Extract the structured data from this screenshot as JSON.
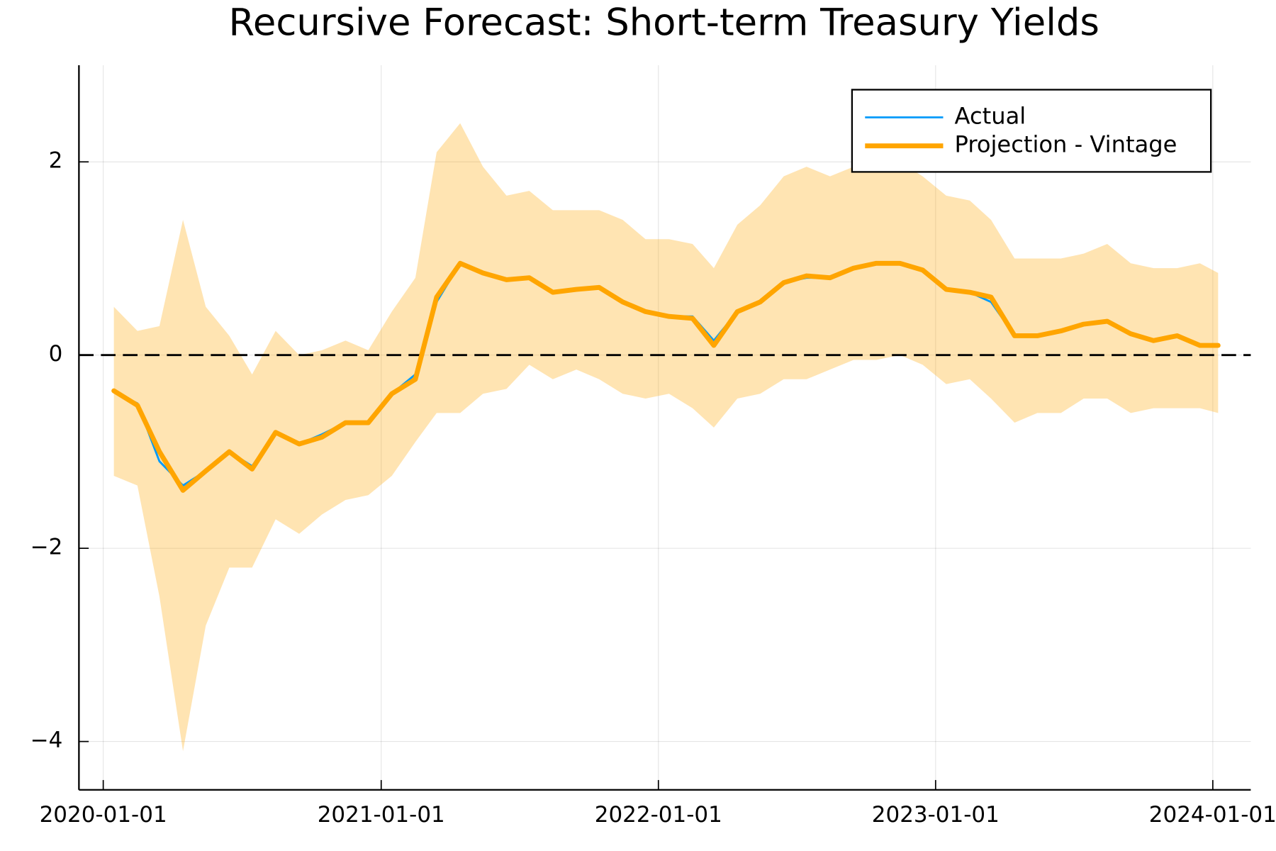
{
  "chart_data": {
    "type": "line",
    "title": "Recursive Forecast: Short-term Treasury Yields",
    "x": [
      "2020-01-15",
      "2020-02-15",
      "2020-03-15",
      "2020-04-15",
      "2020-05-15",
      "2020-06-15",
      "2020-07-15",
      "2020-08-15",
      "2020-09-15",
      "2020-10-15",
      "2020-11-15",
      "2020-12-15",
      "2021-01-15",
      "2021-02-15",
      "2021-03-15",
      "2021-04-15",
      "2021-05-15",
      "2021-06-15",
      "2021-07-15",
      "2021-08-15",
      "2021-09-15",
      "2021-10-15",
      "2021-11-15",
      "2021-12-15",
      "2022-01-15",
      "2022-02-15",
      "2022-03-15",
      "2022-04-15",
      "2022-05-15",
      "2022-06-15",
      "2022-07-15",
      "2022-08-15",
      "2022-09-15",
      "2022-10-15",
      "2022-11-15",
      "2022-12-15",
      "2023-01-15",
      "2023-02-15",
      "2023-03-15",
      "2023-04-15",
      "2023-05-15",
      "2023-06-15",
      "2023-07-15",
      "2023-08-15",
      "2023-09-15",
      "2023-10-15",
      "2023-11-15",
      "2023-12-15",
      "2024-01-08"
    ],
    "series": [
      {
        "name": "Actual",
        "color": "#009AFA",
        "width": 2.5,
        "values": [
          -0.38,
          -0.5,
          -1.1,
          -1.35,
          -1.2,
          -1.0,
          -1.15,
          -0.8,
          -0.92,
          -0.82,
          -0.7,
          -0.7,
          -0.4,
          -0.2,
          0.55,
          0.95,
          0.85,
          0.78,
          0.8,
          0.65,
          0.68,
          0.7,
          0.55,
          0.45,
          0.4,
          0.4,
          0.15,
          0.45,
          0.55,
          0.75,
          0.8,
          0.8,
          0.9,
          0.95,
          0.95,
          0.88,
          0.68,
          0.65,
          0.55,
          0.2,
          0.2,
          0.25,
          0.32,
          0.35,
          0.22,
          0.15,
          0.2,
          0.1,
          0.1
        ]
      },
      {
        "name": "Projection - Vintage",
        "color": "#FFA500",
        "width": 6,
        "values": [
          -0.37,
          -0.52,
          -1.0,
          -1.4,
          -1.2,
          -1.0,
          -1.18,
          -0.8,
          -0.92,
          -0.85,
          -0.7,
          -0.7,
          -0.4,
          -0.25,
          0.6,
          0.95,
          0.85,
          0.78,
          0.8,
          0.65,
          0.68,
          0.7,
          0.55,
          0.45,
          0.4,
          0.38,
          0.1,
          0.45,
          0.55,
          0.75,
          0.82,
          0.8,
          0.9,
          0.95,
          0.95,
          0.88,
          0.68,
          0.65,
          0.6,
          0.2,
          0.2,
          0.25,
          0.32,
          0.35,
          0.22,
          0.15,
          0.2,
          0.1,
          0.1
        ]
      }
    ],
    "band_upper": [
      0.5,
      0.25,
      0.3,
      1.4,
      0.5,
      0.2,
      -0.2,
      0.25,
      0.0,
      0.05,
      0.15,
      0.05,
      0.45,
      0.8,
      2.1,
      2.4,
      1.95,
      1.65,
      1.7,
      1.5,
      1.5,
      1.5,
      1.4,
      1.2,
      1.2,
      1.15,
      0.9,
      1.35,
      1.55,
      1.85,
      1.95,
      1.85,
      1.95,
      2.0,
      2.0,
      1.85,
      1.65,
      1.6,
      1.4,
      1.0,
      1.0,
      1.0,
      1.05,
      1.15,
      0.95,
      0.9,
      0.9,
      0.95,
      0.85
    ],
    "band_lower": [
      -1.25,
      -1.35,
      -2.5,
      -4.1,
      -2.8,
      -2.2,
      -2.2,
      -1.7,
      -1.85,
      -1.65,
      -1.5,
      -1.45,
      -1.25,
      -0.9,
      -0.6,
      -0.6,
      -0.4,
      -0.35,
      -0.1,
      -0.25,
      -0.15,
      -0.25,
      -0.4,
      -0.45,
      -0.4,
      -0.55,
      -0.75,
      -0.45,
      -0.4,
      -0.25,
      -0.25,
      -0.15,
      -0.05,
      -0.05,
      0.0,
      -0.1,
      -0.3,
      -0.25,
      -0.45,
      -0.7,
      -0.6,
      -0.6,
      -0.45,
      -0.45,
      -0.6,
      -0.55,
      -0.55,
      -0.55,
      -0.6
    ],
    "band_color": "#FFA500",
    "reference_line": 0,
    "xlim": [
      "2019-11-30",
      "2024-02-20"
    ],
    "xticks": [
      "2020-01-01",
      "2021-01-01",
      "2022-01-01",
      "2023-01-01",
      "2024-01-01"
    ],
    "ylim": [
      -4.5,
      3.0
    ],
    "yticks": [
      {
        "value": -4,
        "label": "−4"
      },
      {
        "value": -2,
        "label": "−2"
      },
      0,
      2
    ],
    "grid": true,
    "legend": "top right"
  }
}
